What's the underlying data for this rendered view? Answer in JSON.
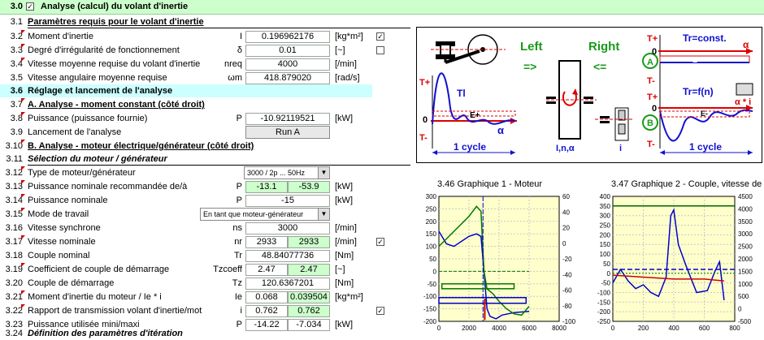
{
  "header": {
    "num": "3.0",
    "title": "Analyse (calcul) du volant d'inertie",
    "checked": "✓"
  },
  "rows": {
    "r31": {
      "num": "3.1",
      "label": "Paramètres requis pour le volant d'inertie"
    },
    "r32": {
      "num": "3.2",
      "label": "Moment d'inertie",
      "sym": "I",
      "value": "0.196962176",
      "unit": "[kg*m²]",
      "check": "✓"
    },
    "r33": {
      "num": "3.3",
      "label": "Degré d'irrégularité de fonctionnement",
      "sym": "δ",
      "value": "0.01",
      "unit": "[~]"
    },
    "r34": {
      "num": "3.4",
      "label": "Vitesse moyenne requise du volant d'inertie",
      "sym": "nreq",
      "value": "4000",
      "unit": "[/min]"
    },
    "r35": {
      "num": "3.5",
      "label": "Vitesse angulaire moyenne requise",
      "sym": "ωm",
      "value": "418.879020",
      "unit": "[rad/s]"
    },
    "r36": {
      "num": "3.6",
      "label": "Réglage et lancement de l'analyse"
    },
    "r37": {
      "num": "3.7",
      "label": "A. Analyse - moment constant (côté droit)"
    },
    "r38": {
      "num": "3.8",
      "label": "Puissance (puissance fournie)",
      "sym": "P",
      "value": "-10.92119521",
      "unit": "[kW]"
    },
    "r39": {
      "num": "3.9",
      "label": "Lancement de l'analyse",
      "button": "Run A"
    },
    "r310": {
      "num": "3.10",
      "label": "B. Analyse - moteur électrique/générateur (côté droit)"
    },
    "r311": {
      "num": "3.11",
      "label": "Sélection du moteur / générateur"
    },
    "r312": {
      "num": "3.12",
      "label": "Type de moteur/générateur",
      "select": "3000 / 2p ... 50Hz"
    },
    "r313": {
      "num": "3.13",
      "label": "Puissance nominale recommandée de/à",
      "sym": "P",
      "v1": "-13.1",
      "v2": "-53.9",
      "unit": "[kW]"
    },
    "r314": {
      "num": "3.14",
      "label": "Puissance nominale",
      "sym": "P",
      "value": "-15",
      "unit": "[kW]"
    },
    "r315": {
      "num": "3.15",
      "label": "Mode de travail",
      "select": "En tant que moteur-générateur"
    },
    "r316": {
      "num": "3.16",
      "label": "Vitesse synchrone",
      "sym": "ns",
      "value": "3000",
      "unit": "[/min]"
    },
    "r317": {
      "num": "3.17",
      "label": "Vitesse nominale",
      "sym": "nr",
      "v1": "2933",
      "v2": "2933",
      "unit": "[/min]",
      "check": "✓"
    },
    "r318": {
      "num": "3.18",
      "label": "Couple nominal",
      "sym": "Tr",
      "value": "48.84077736",
      "unit": "[Nm]"
    },
    "r319": {
      "num": "3.19",
      "label": "Coefficient de couple de démarrage",
      "sym": "Tzcoeff",
      "v1": "2.47",
      "v2": "2.47",
      "unit": "[~]"
    },
    "r320": {
      "num": "3.20",
      "label": "Couple de démarrage",
      "sym": "Tz",
      "value": "120.6367201",
      "unit": "[Nm]"
    },
    "r321": {
      "num": "3.21",
      "label": "Moment d'inertie du moteur / Ie * i",
      "sym": "Ie",
      "v1": "0.068",
      "v2": "0.039504",
      "unit": "[kg*m²]"
    },
    "r322": {
      "num": "3.22",
      "label": "Rapport de transmission volant d'inertie/mot",
      "sym": "i",
      "v1": "0.762",
      "v2": "0.762",
      "unit": "",
      "check": "✓"
    },
    "r323": {
      "num": "3.23",
      "label": "Puissance utilisée mini/maxi",
      "sym": "P",
      "v1": "-14.22",
      "v2": "-7.034",
      "unit": "[kW]"
    },
    "r324": {
      "num": "3.24",
      "label": "Définition des paramètres d'itération"
    }
  },
  "diagram": {
    "left": "Left",
    "right": "Right",
    "arrow_right": "=>",
    "arrow_left": "<=",
    "tplus": "T+",
    "tminus": "T-",
    "zero": "0",
    "tl": "Tl",
    "eplus": "E+",
    "eminus": "E-",
    "alpha": "α",
    "alpha_i": "α * i",
    "one_cycle": "1 cycle",
    "inalpha": "I,n,α",
    "i": "i",
    "tr_const": "Tr=const.",
    "tr_fn": "Tr=f(n)",
    "A": "A",
    "B": "B"
  },
  "graph1": {
    "num": "3.46",
    "title": "Graphique 1 - Moteur"
  },
  "graph2": {
    "num": "3.47",
    "title": "Graphique 2 - Couple, vitesse de"
  },
  "chart_data": [
    {
      "type": "line",
      "title": "Graphique 1 - Moteur",
      "xlim": [
        0,
        8000
      ],
      "ylim": [
        -200,
        300
      ],
      "y2lim": [
        -100,
        60
      ],
      "x_ticks": [
        "0",
        "2000",
        "4000",
        "6000",
        "8000"
      ],
      "y_ticks": [
        "300",
        "250",
        "200",
        "150",
        "100",
        "50",
        "0",
        "-50",
        "-100",
        "-150",
        "-200"
      ],
      "y2_ticks": [
        "60",
        "40",
        "20",
        "0",
        "-20",
        "-40",
        "-60",
        "-80",
        "-100"
      ],
      "series": [
        {
          "color": "#0000cc",
          "x": [
            0,
            500,
            1000,
            1500,
            2000,
            2500,
            2800,
            3000,
            3200,
            3400,
            3800,
            4200,
            5000,
            6000
          ],
          "y": [
            160,
            110,
            100,
            120,
            140,
            150,
            140,
            0,
            -150,
            -180,
            -190,
            -175,
            -165,
            -160
          ]
        },
        {
          "color": "#007700",
          "x": [
            0,
            500,
            1000,
            1500,
            2000,
            2500,
            2800,
            3000,
            3200,
            3600,
            4000,
            4500,
            5000,
            5500,
            6000
          ],
          "y": [
            100,
            130,
            160,
            190,
            220,
            260,
            240,
            0,
            -70,
            -90,
            -120,
            -150,
            -170,
            -175,
            -140
          ]
        }
      ]
    },
    {
      "type": "line",
      "title": "Graphique 2 - Couple, vitesse de",
      "xlim": [
        0,
        800
      ],
      "ylim": [
        -250,
        400
      ],
      "y2lim": [
        -500,
        4500
      ],
      "x_ticks": [
        "0",
        "200",
        "400",
        "600",
        "800"
      ],
      "y_ticks": [
        "400",
        "350",
        "300",
        "250",
        "200",
        "150",
        "100",
        "50",
        "0",
        "-50",
        "-100",
        "-150",
        "-200",
        "-250"
      ],
      "y2_ticks": [
        "4500",
        "4000",
        "3500",
        "3000",
        "2500",
        "2000",
        "1500",
        "1000",
        "500",
        "0",
        "-500"
      ],
      "series": [
        {
          "color": "#006600",
          "x": [
            0,
            800
          ],
          "y": [
            350,
            350
          ]
        },
        {
          "color": "#0000cc",
          "x": [
            0,
            50,
            100,
            150,
            200,
            250,
            300,
            350,
            380,
            400,
            430,
            480,
            550,
            620,
            670,
            700,
            730
          ],
          "y": [
            -50,
            20,
            -40,
            -80,
            -60,
            -100,
            -120,
            -20,
            300,
            330,
            150,
            40,
            -100,
            -90,
            10,
            60,
            -140
          ]
        },
        {
          "color": "#cc0000",
          "x": [
            0,
            200,
            400,
            600,
            730
          ],
          "y": [
            -10,
            -20,
            -30,
            -30,
            -40
          ]
        }
      ]
    }
  ]
}
